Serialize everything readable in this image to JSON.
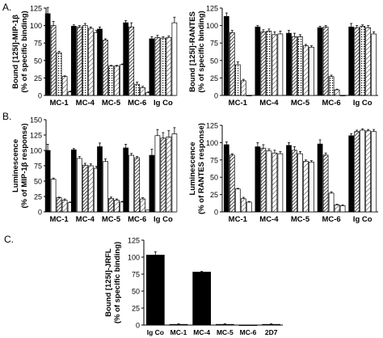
{
  "panel_labels": {
    "a": "A.",
    "b": "B.",
    "c": "C."
  },
  "chart_data": [
    {
      "id": "A-left",
      "type": "bar",
      "ylabel_line1": "Bound [125I]-MIP-1β",
      "ylabel_line2": "(% of specific binding)",
      "ylim": [
        0,
        125
      ],
      "yticks": [
        "0",
        "25",
        "50",
        "75",
        "100",
        "125"
      ],
      "categories": [
        "MC-1",
        "MC-4",
        "MC-5",
        "MC-6",
        "Ig Co"
      ],
      "series": [
        {
          "fill": "black",
          "values": [
            117,
            99,
            95,
            104,
            81
          ]
        },
        {
          "fill": "dense-hatch",
          "values": [
            100,
            98,
            79,
            98,
            83
          ]
        },
        {
          "fill": "dots",
          "values": [
            61,
            100,
            42,
            16,
            82
          ]
        },
        {
          "fill": "light-hatch",
          "values": [
            27,
            96,
            42,
            11,
            83
          ]
        },
        {
          "fill": "white",
          "values": [
            5,
            90,
            44,
            4,
            104
          ]
        }
      ],
      "errors": [
        [
          9,
          2,
          3,
          3,
          3
        ],
        [
          6,
          2,
          2,
          6,
          3
        ],
        [
          2,
          3,
          1,
          3,
          2
        ],
        [
          1,
          2,
          1,
          2,
          2
        ],
        [
          1,
          3,
          1,
          1,
          8
        ]
      ]
    },
    {
      "id": "A-right",
      "type": "bar",
      "ylabel_line1": "Bound [125I]-RANTES",
      "ylabel_line2": "(% of specific binding)",
      "ylim": [
        0,
        125
      ],
      "yticks": [
        "0",
        "25",
        "50",
        "75",
        "100",
        "125"
      ],
      "categories": [
        "MC-1",
        "MC-4",
        "MC-5",
        "MC-6",
        "Ig Co"
      ],
      "series": [
        {
          "fill": "black",
          "values": [
            113,
            98,
            89,
            97,
            98
          ]
        },
        {
          "fill": "dense-hatch",
          "values": [
            90,
            91,
            84,
            98,
            97
          ]
        },
        {
          "fill": "dots",
          "values": [
            44,
            92,
            84,
            27,
            99
          ]
        },
        {
          "fill": "light-hatch",
          "values": [
            21,
            87,
            71,
            8,
            97
          ]
        },
        {
          "fill": "white",
          "values": [
            0,
            88,
            69,
            0,
            88
          ]
        }
      ],
      "errors": [
        [
          5,
          2,
          4,
          2,
          5
        ],
        [
          3,
          3,
          5,
          2,
          3
        ],
        [
          4,
          3,
          3,
          2,
          2
        ],
        [
          2,
          4,
          2,
          1,
          3
        ],
        [
          0,
          4,
          2,
          0,
          3
        ]
      ]
    },
    {
      "id": "B-left",
      "type": "bar",
      "ylabel_line1": "Luminescence",
      "ylabel_line2": "(% of MIP-1β response)",
      "ylim": [
        0,
        150
      ],
      "yticks": [
        "0",
        "25",
        "50",
        "75",
        "100",
        "125",
        "150"
      ],
      "categories": [
        "MC-1",
        "MC-4",
        "MC-5",
        "MC-6",
        "Ig Co"
      ],
      "series": [
        {
          "fill": "black",
          "values": [
            100,
            101,
            106,
            104,
            92
          ]
        },
        {
          "fill": "white",
          "values": [
            53,
            87,
            82,
            92,
            124
          ]
        },
        {
          "fill": "dense-hatch",
          "values": [
            23,
            76,
            22,
            88,
            120
          ]
        },
        {
          "fill": "light-hatch",
          "values": [
            19,
            75,
            19,
            21,
            122
          ]
        },
        {
          "fill": "white",
          "values": [
            15,
            71,
            16,
            3,
            127
          ]
        }
      ],
      "errors": [
        [
          10,
          2,
          6,
          6,
          10
        ],
        [
          2,
          3,
          4,
          3,
          10
        ],
        [
          1,
          3,
          2,
          2,
          9
        ],
        [
          2,
          3,
          2,
          2,
          10
        ],
        [
          1,
          3,
          1,
          0,
          10
        ]
      ]
    },
    {
      "id": "B-right",
      "type": "bar",
      "ylabel_line1": "Luminescence",
      "ylabel_line2": "(% of RANTES response)",
      "ylim": [
        0,
        125
      ],
      "yticks": [
        "0",
        "25",
        "50",
        "75",
        "100",
        "125"
      ],
      "categories": [
        "MC-1",
        "MC-4",
        "MC-5",
        "MC-6",
        "Ig Co"
      ],
      "series": [
        {
          "fill": "black",
          "values": [
            97,
            94,
            96,
            98,
            110
          ]
        },
        {
          "fill": "dense-hatch",
          "values": [
            82,
            92,
            89,
            82,
            116
          ]
        },
        {
          "fill": "white",
          "values": [
            33,
            88,
            84,
            27,
            118
          ]
        },
        {
          "fill": "light-hatch",
          "values": [
            19,
            85,
            73,
            10,
            117
          ]
        },
        {
          "fill": "white",
          "values": [
            14,
            84,
            72,
            9,
            116
          ]
        }
      ],
      "errors": [
        [
          4,
          6,
          4,
          6,
          3
        ],
        [
          2,
          5,
          5,
          3,
          2
        ],
        [
          1,
          3,
          3,
          2,
          2
        ],
        [
          2,
          4,
          2,
          1,
          2
        ],
        [
          1,
          3,
          2,
          1,
          3
        ]
      ]
    },
    {
      "id": "C",
      "type": "bar",
      "ylabel_line1": "Bound [125I]-JRFL",
      "ylabel_line2": "(% of specific binding)",
      "ylim": [
        0,
        125
      ],
      "yticks": [
        "0",
        "25",
        "50",
        "75",
        "100",
        "125"
      ],
      "categories": [
        "Ig Co",
        "MC-1",
        "MC-4",
        "MC-5",
        "MC-6",
        "2D7"
      ],
      "series": [
        {
          "fill": "black",
          "values": [
            103,
            1,
            78,
            1,
            0,
            1
          ]
        }
      ],
      "errors": [
        [
          5,
          1,
          1,
          1,
          0,
          1
        ]
      ]
    }
  ]
}
